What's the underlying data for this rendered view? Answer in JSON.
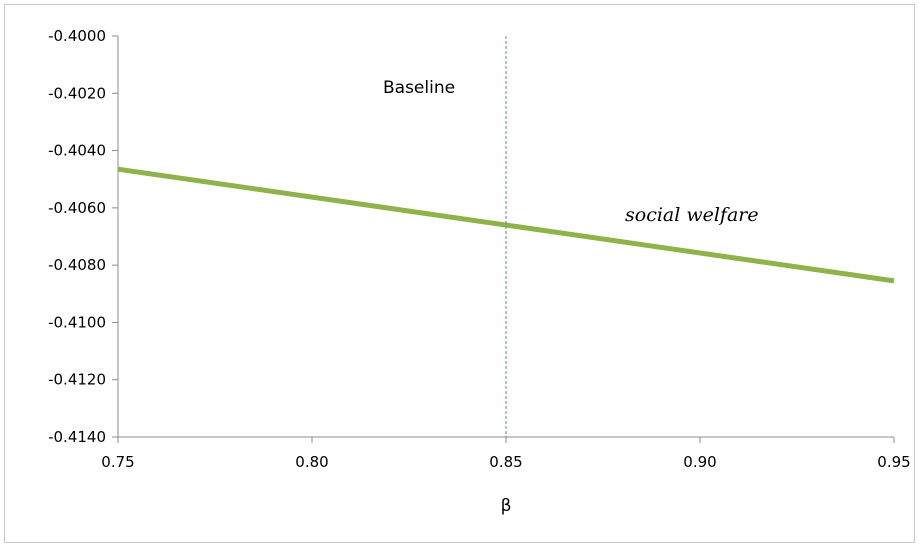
{
  "chart_data": {
    "type": "line",
    "title": "",
    "xlabel": "β",
    "ylabel": "",
    "xlim": [
      0.75,
      0.95
    ],
    "ylim": [
      -0.414,
      -0.4
    ],
    "xticks": [
      0.75,
      0.8,
      0.85,
      0.9,
      0.95
    ],
    "xtick_labels": [
      "0.75",
      "0.80",
      "0.85",
      "0.90",
      "0.95"
    ],
    "yticks": [
      -0.4,
      -0.402,
      -0.404,
      -0.406,
      -0.408,
      -0.41,
      -0.412,
      -0.414
    ],
    "ytick_labels": [
      "-0.4000",
      "-0.4020",
      "-0.4040",
      "-0.4060",
      "-0.4080",
      "-0.4100",
      "-0.4120",
      "-0.4140"
    ],
    "grid": false,
    "series": [
      {
        "name": "social welfare",
        "color": "#8db34a",
        "x": [
          0.75,
          0.95
        ],
        "y": [
          -0.40465,
          -0.40855
        ]
      }
    ],
    "reference_line": {
      "label": "Baseline",
      "x": 0.85,
      "color": "#5b7fc8",
      "style": "dashed"
    },
    "annotations": [
      {
        "text": "Baseline"
      },
      {
        "text": "social welfare"
      }
    ]
  }
}
